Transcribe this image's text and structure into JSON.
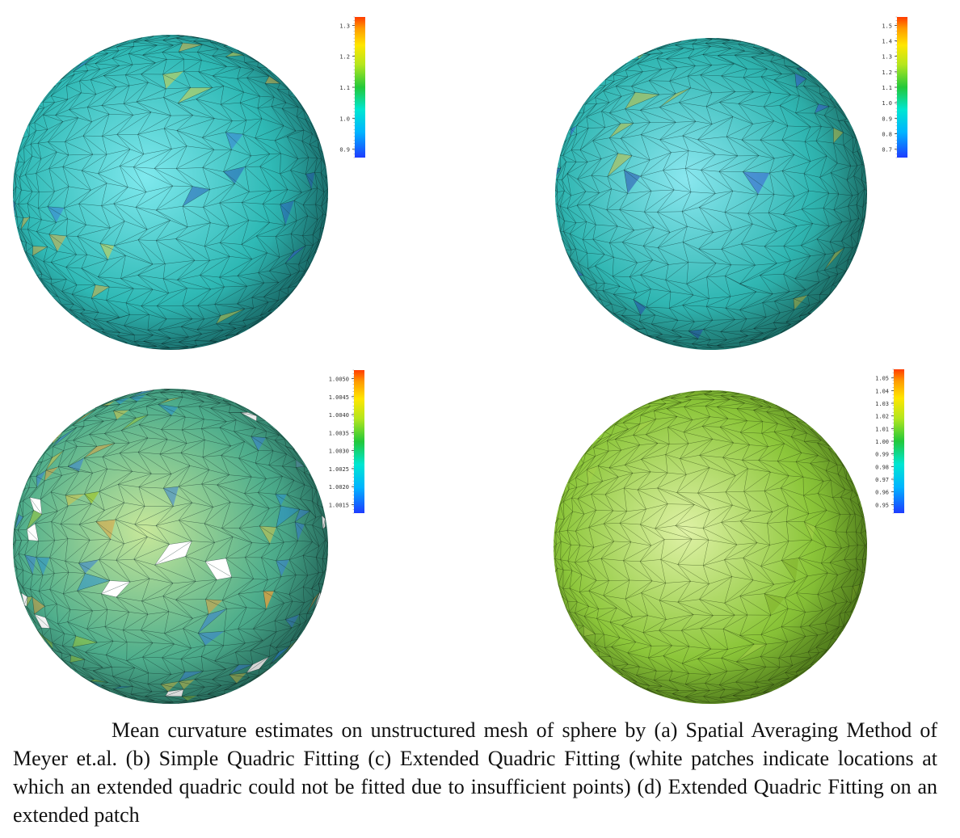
{
  "figure": {
    "panels": [
      {
        "id": "a",
        "sphere": {
          "base": "#2fb9b5",
          "highlight": "#7fe9ee",
          "shade": "#1e7f7c",
          "line": "#0b2f2e"
        },
        "colorbar": {
          "ticks": [
            "1.3",
            "1.2",
            "1.1",
            "1.0",
            "0.9"
          ],
          "top_label": ""
        }
      },
      {
        "id": "b",
        "sphere": {
          "base": "#30b6b2",
          "highlight": "#8ae7ef",
          "shade": "#208076",
          "line": "#0b2f2e"
        },
        "colorbar": {
          "ticks": [
            "1.5",
            "1.4",
            "1.3",
            "1.2",
            "1.1",
            "1.0",
            "0.9",
            "0.8",
            "0.7"
          ],
          "top_label": ""
        }
      },
      {
        "id": "c",
        "sphere": {
          "base": "#4fae8c",
          "highlight": "#c8e89a",
          "shade": "#2a7f70",
          "line": "#12302a"
        },
        "colorbar": {
          "ticks": [
            "1.0050",
            "1.0045",
            "1.0040",
            "1.0035",
            "1.0030",
            "1.0025",
            "1.0020",
            "1.0015"
          ],
          "top_label": ""
        }
      },
      {
        "id": "d",
        "sphere": {
          "base": "#8cc63a",
          "highlight": "#dff2a6",
          "shade": "#5f9520",
          "line": "#2a3f0c"
        },
        "colorbar": {
          "ticks": [
            "1.05",
            "1.04",
            "1.03",
            "1.02",
            "1.01",
            "1.00",
            "0.99",
            "0.98",
            "0.97",
            "0.96",
            "0.95"
          ],
          "top_label": ""
        }
      }
    ],
    "caption": "Mean curvature estimates on unstructured mesh of sphere by (a) Spatial Averaging Method of Meyer et.al. (b) Simple Quadric Fitting (c) Extended Quadric Fitting (white patches indicate locations at which an extended quadric could not be fitted due to insufficient points) (d) Extended Quadric Fitting on an extended patch"
  }
}
